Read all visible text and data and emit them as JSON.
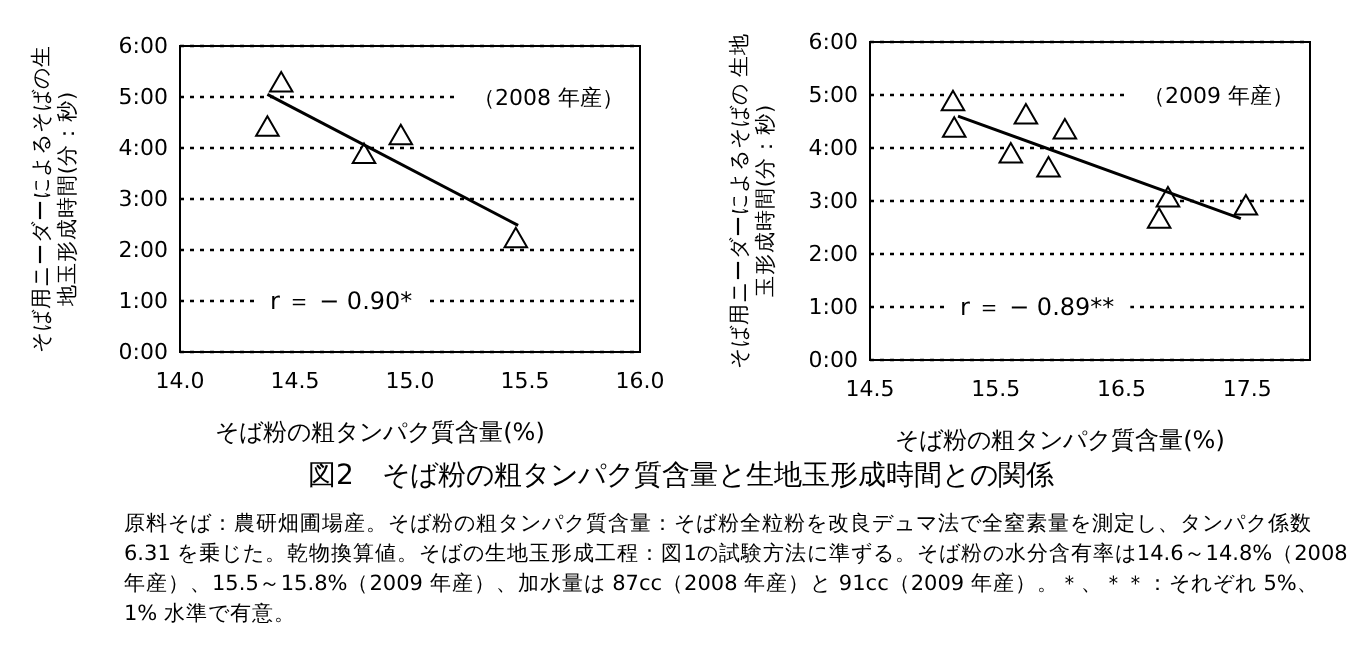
{
  "chart_data": [
    {
      "type": "scatter",
      "xlabel": "そば粉の粗タンパク質含量(%)",
      "ylabel": "そば用ニーダーによるそばの生地玉形成時間(分：秒)",
      "xlim": [
        14.0,
        16.0
      ],
      "xticks": [
        {
          "value": 14.0,
          "label": "14.0"
        },
        {
          "value": 14.5,
          "label": "14.5"
        },
        {
          "value": 15.0,
          "label": "15.0"
        },
        {
          "value": 15.5,
          "label": "15.5"
        },
        {
          "value": 16.0,
          "label": "16.0"
        }
      ],
      "ylim": [
        0,
        360
      ],
      "yticks": [
        {
          "value": 0,
          "label": "0:00"
        },
        {
          "value": 60,
          "label": "1:00"
        },
        {
          "value": 120,
          "label": "2:00"
        },
        {
          "value": 180,
          "label": "3:00"
        },
        {
          "value": 240,
          "label": "4:00"
        },
        {
          "value": 300,
          "label": "5:00"
        },
        {
          "value": 360,
          "label": "6:00"
        }
      ],
      "grid": "y",
      "marker": "triangle",
      "series": [
        {
          "color": "#000000",
          "x": [
            14.44,
            14.38,
            14.8,
            14.96,
            15.46
          ],
          "values": [
            314,
            262,
            230,
            252,
            131
          ]
        },
        {
          "type": "line",
          "marker": "none",
          "color": "#000000",
          "x": [
            14.38,
            15.47
          ],
          "values": [
            303,
            149
          ]
        }
      ],
      "annotations": [
        "（2008 年産）",
        "r ＝ − 0.90*"
      ]
    },
    {
      "type": "scatter",
      "xlabel": "そば粉の粗タンパク質含量(%)",
      "ylabel": "そば用ニーダーによるそばの 生地玉形成時間(分：秒)",
      "xlim": [
        14.5,
        18.0
      ],
      "xticks": [
        14.5,
        15.5,
        16.5,
        17.5
      ],
      "ylim": [
        0,
        360
      ],
      "yticks": [
        {
          "value": 0,
          "label": "0:00"
        },
        {
          "value": 60,
          "label": "1:00"
        },
        {
          "value": 120,
          "label": "2:00"
        },
        {
          "value": 180,
          "label": "3:00"
        },
        {
          "value": 240,
          "label": "4:00"
        },
        {
          "value": 300,
          "label": "5:00"
        },
        {
          "value": 360,
          "label": "6:00"
        }
      ],
      "grid": "y",
      "marker": "triangle",
      "series": [
        {
          "color": "#000000",
          "x": [
            15.16,
            15.17,
            15.62,
            15.74,
            15.92,
            16.05,
            16.8,
            16.87,
            17.49
          ],
          "values": [
            290,
            260,
            231,
            275,
            215,
            258,
            157,
            181,
            172
          ]
        },
        {
          "type": "line",
          "marker": "none",
          "color": "#000000",
          "x": [
            15.2,
            17.45
          ],
          "values": [
            276,
            160
          ]
        }
      ],
      "annotations": [
        "（2009 年産）",
        "r ＝ − 0.89**",
        "図2　そば粉の粗タンパク質含量と生地玉形成時間との関係",
        "原料そば：農研畑圃場産。そば粉の粗タンパク質含量：そば粉全粒粉を改良デュマ法で全窒素量を測定し、タンパク係数 6.31 を乗じた。乾物換算値。そばの生地玉形成工程：図1の試験方法に準ずる。そば粉の水分含有率は14.6～14.8%（2008 年産）、15.5～15.8%（2009 年産）、加水量は 87cc（2008 年産）と 91cc（2009 年産）。＊、＊＊：それぞれ 5%、1% 水準で有意。"
      ]
    }
  ]
}
